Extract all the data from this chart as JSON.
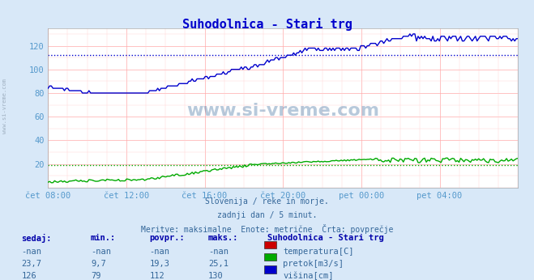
{
  "title": "Suhodolnica - Stari trg",
  "title_color": "#0000cc",
  "bg_color": "#d8e8f8",
  "plot_bg_color": "#ffffff",
  "xlabel_color": "#5599cc",
  "text_color": "#336699",
  "watermark_text": "www.si-vreme.com",
  "watermark_color": "#336699",
  "subtitle_lines": [
    "Slovenija / reke in morje.",
    "zadnji dan / 5 minut.",
    "Meritve: maksimalne  Enote: metrične  Črta: povprečje"
  ],
  "xticklabels": [
    "čet 08:00",
    "čet 12:00",
    "čet 16:00",
    "čet 20:00",
    "pet 00:00",
    "pet 04:00"
  ],
  "yticks": [
    20,
    40,
    60,
    80,
    100,
    120
  ],
  "ylim": [
    0,
    135
  ],
  "xlim": [
    0,
    288
  ],
  "avg_blue": 112,
  "avg_green": 19.3,
  "legend_title": "Suhodolnica - Stari trg",
  "table_headers": [
    "sedaj:",
    "min.:",
    "povpr.:",
    "maks.:"
  ],
  "table_data": [
    [
      "-nan",
      "-nan",
      "-nan",
      "-nan",
      "temperatura[C]",
      "#cc0000"
    ],
    [
      "23,7",
      "9,7",
      "19,3",
      "25,1",
      "pretok[m3/s]",
      "#00aa00"
    ],
    [
      "126",
      "79",
      "112",
      "130",
      "višina[cm]",
      "#0000cc"
    ]
  ]
}
